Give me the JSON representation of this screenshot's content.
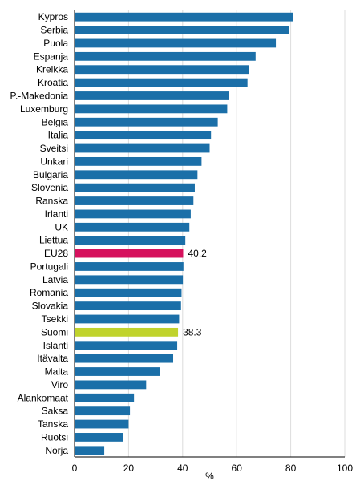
{
  "chart_data": {
    "type": "bar",
    "orientation": "horizontal",
    "categories": [
      "Kypros",
      "Serbia",
      "Puola",
      "Espanja",
      "Kreikka",
      "Kroatia",
      "P.-Makedonia",
      "Luxemburg",
      "Belgia",
      "Italia",
      "Sveitsi",
      "Unkari",
      "Bulgaria",
      "Slovenia",
      "Ranska",
      "Irlanti",
      "UK",
      "Liettua",
      "EU28",
      "Portugali",
      "Latvia",
      "Romania",
      "Slovakia",
      "Tsekki",
      "Suomi",
      "Islanti",
      "Itävalta",
      "Malta",
      "Viro",
      "Alankomaat",
      "Saksa",
      "Tanska",
      "Ruotsi",
      "Norja"
    ],
    "values": [
      80.8,
      79.5,
      74.5,
      67,
      64.5,
      64,
      57,
      56.5,
      53,
      50.5,
      50,
      47,
      45.5,
      44.5,
      44,
      43,
      42.5,
      41,
      40.2,
      40.3,
      40.1,
      39.6,
      39.4,
      38.7,
      38.3,
      38,
      36.5,
      31.5,
      26.5,
      22,
      20.5,
      20,
      18,
      11
    ],
    "data_labels": [
      {
        "category": "EU28",
        "text": "40.2"
      },
      {
        "category": "Suomi",
        "text": "38.3"
      }
    ],
    "xlim": [
      0,
      100
    ],
    "xticks": [
      0,
      20,
      40,
      60,
      80,
      100
    ],
    "xlabel": "%",
    "title": "",
    "grid": true,
    "colors": {
      "default": "#1b6fa8",
      "EU28": "#d6115d",
      "Suomi": "#c0d32c"
    }
  }
}
